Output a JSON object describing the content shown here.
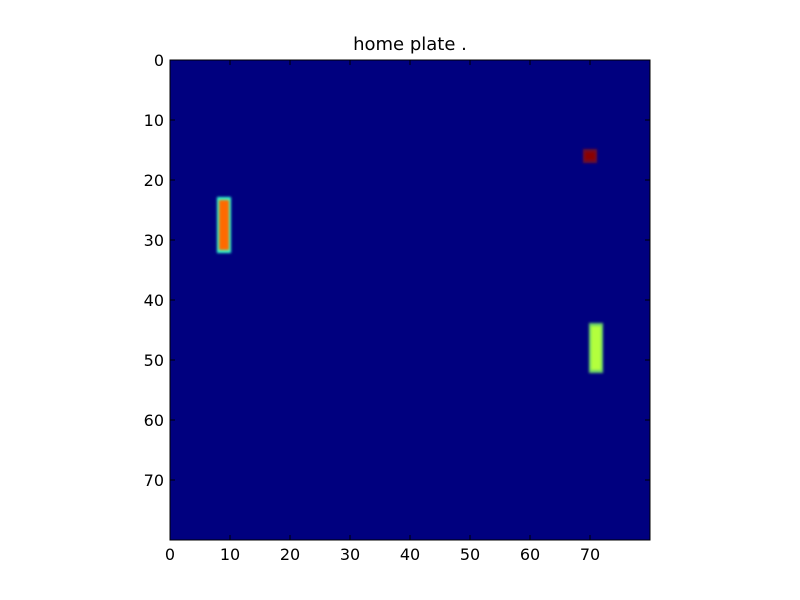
{
  "title": "home plate .",
  "chart_data": {
    "type": "heatmap",
    "title": "home plate .",
    "xlabel": "",
    "ylabel": "",
    "grid_size": [
      80,
      80
    ],
    "xlim": [
      0,
      80
    ],
    "ylim": [
      80,
      0
    ],
    "x_ticks": [
      0,
      10,
      20,
      30,
      40,
      50,
      60,
      70
    ],
    "y_ticks": [
      0,
      10,
      20,
      30,
      40,
      50,
      60,
      70
    ],
    "colormap": "jet",
    "background_color": "#00007f",
    "objects": [
      {
        "name": "left-paddle",
        "x_range": [
          8,
          10
        ],
        "y_range": [
          23,
          32
        ],
        "core_color": "#ff6a00",
        "edge_color": "#33ffcc"
      },
      {
        "name": "right-paddle",
        "x_range": [
          70,
          72
        ],
        "y_range": [
          44,
          52
        ],
        "core_color": "#b3ff3c",
        "edge_color": "#6bd06a"
      },
      {
        "name": "ball",
        "x_range": [
          69,
          71
        ],
        "y_range": [
          15,
          17
        ],
        "core_color": "#8a0000",
        "edge_color": "#700d2a"
      }
    ]
  }
}
